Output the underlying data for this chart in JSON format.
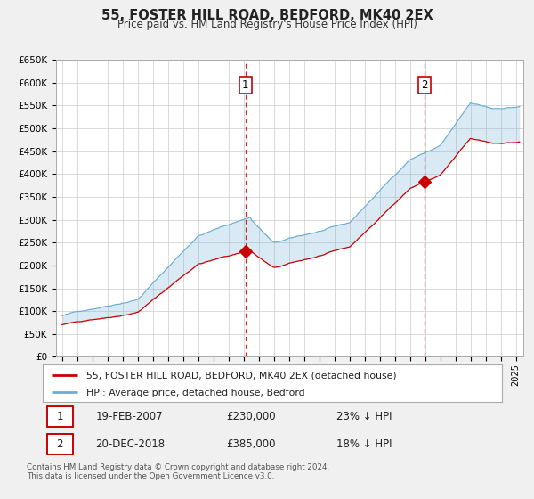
{
  "title": "55, FOSTER HILL ROAD, BEDFORD, MK40 2EX",
  "subtitle": "Price paid vs. HM Land Registry's House Price Index (HPI)",
  "legend_line1": "55, FOSTER HILL ROAD, BEDFORD, MK40 2EX (detached house)",
  "legend_line2": "HPI: Average price, detached house, Bedford",
  "transaction1_date": "19-FEB-2007",
  "transaction1_price": 230000,
  "transaction1_pct": "23% ↓ HPI",
  "transaction2_date": "20-DEC-2018",
  "transaction2_price": 385000,
  "transaction2_pct": "18% ↓ HPI",
  "transaction1_year": 2007.13,
  "transaction2_year": 2018.97,
  "footer": "Contains HM Land Registry data © Crown copyright and database right 2024.\nThis data is licensed under the Open Government Licence v3.0.",
  "hpi_color": "#6baed6",
  "price_color": "#cc0000",
  "plot_bg": "#ffffff",
  "grid_color": "#cccccc",
  "vline_color": "#cc0000",
  "ylim": [
    0,
    650000
  ],
  "yticks": [
    0,
    50000,
    100000,
    150000,
    200000,
    250000,
    300000,
    350000,
    400000,
    450000,
    500000,
    550000,
    600000,
    650000
  ],
  "xlim_start": 1994.6,
  "xlim_end": 2025.5
}
